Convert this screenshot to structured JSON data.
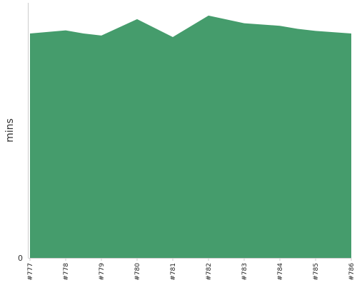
{
  "chart_data": {
    "type": "area",
    "title": "",
    "xlabel": "",
    "ylabel": "mins",
    "categories": [
      "#777",
      "#778",
      "#779",
      "#780",
      "#781",
      "#782",
      "#783",
      "#784",
      "#785",
      "#786"
    ],
    "x": [
      "#777",
      "#778",
      "#778.5",
      "#779",
      "#780",
      "#781",
      "#782",
      "#783",
      "#784",
      "#784.5",
      "#785",
      "#786"
    ],
    "series": [
      {
        "values": [
          88,
          89.2,
          88,
          87.2,
          93.6,
          86.6,
          95,
          92,
          91,
          89.8,
          89,
          88
        ]
      }
    ],
    "y_ticks": [
      0
    ],
    "ylim": [
      0,
      100
    ],
    "grid": false,
    "legend": "none",
    "colors": {
      "area": "#459c6c",
      "axis": "#cccccc",
      "text": "#333333"
    }
  }
}
